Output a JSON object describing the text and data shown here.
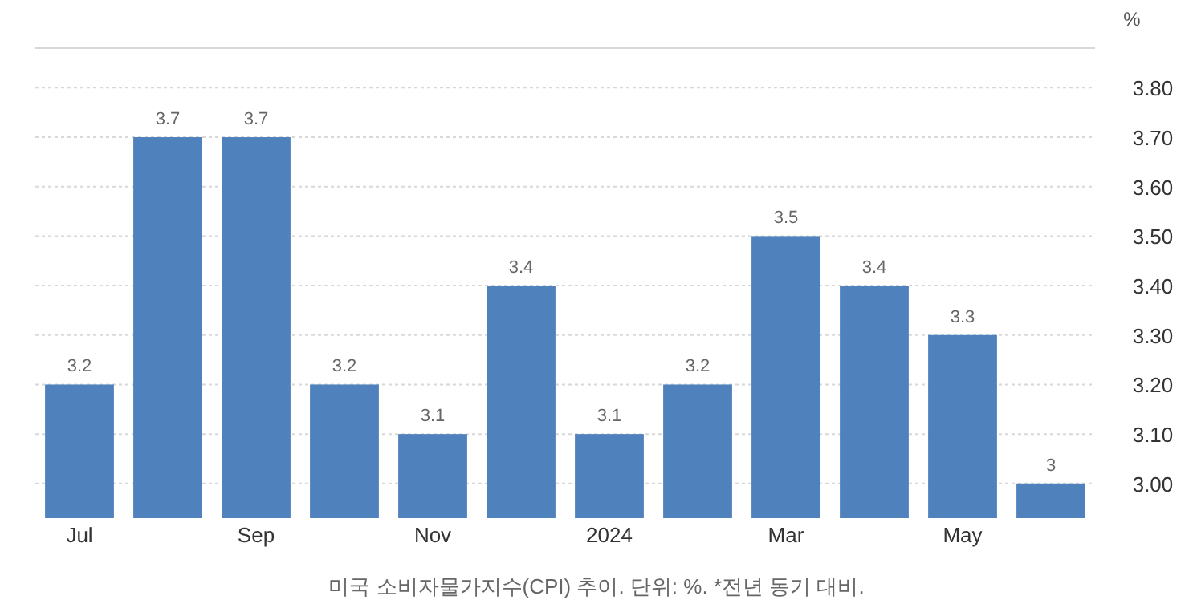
{
  "chart_data": {
    "type": "bar",
    "ylabel": "%",
    "categories": [
      "Jul",
      null,
      "Sep",
      null,
      "Nov",
      null,
      "2024",
      null,
      "Mar",
      null,
      "May",
      null
    ],
    "values": [
      3.2,
      3.7,
      3.7,
      3.2,
      3.1,
      3.4,
      3.1,
      3.2,
      3.5,
      3.4,
      3.3,
      3
    ],
    "color": "#4f81bd",
    "data_labels": true,
    "ylim": [
      2.93,
      3.88
    ],
    "yticks": [
      {
        "value": 3.0,
        "label": "3.00"
      },
      {
        "value": 3.1,
        "label": "3.10"
      },
      {
        "value": 3.2,
        "label": "3.20"
      },
      {
        "value": 3.3,
        "label": "3.30"
      },
      {
        "value": 3.4,
        "label": "3.40"
      },
      {
        "value": 3.5,
        "label": "3.50"
      },
      {
        "value": 3.6,
        "label": "3.60"
      },
      {
        "value": 3.7,
        "label": "3.70"
      },
      {
        "value": 3.8,
        "label": "3.80"
      }
    ],
    "grid": "y",
    "annotations": [
      "미국 소비자물가지수(CPI) 추이. 단위: %. *전년 동기 대비."
    ]
  }
}
